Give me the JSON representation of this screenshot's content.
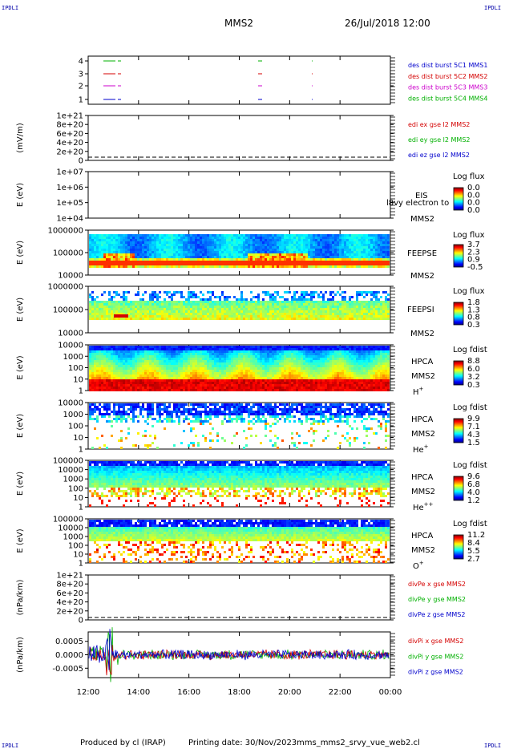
{
  "corner_label": "IPDLI",
  "header": {
    "spacecraft": "MMS2",
    "datetime": "26/Jul/2018 12:00"
  },
  "footer": {
    "produced": "Produced by cl (IRAP)",
    "printing": "Printing date: 30/Nov/2023",
    "file": "mms_mms2_srvy_vue_web2.cl"
  },
  "colors": {
    "red": "#d40000",
    "green": "#00b000",
    "blue": "#0000cc",
    "magenta": "#cc00cc"
  },
  "chart_data": [
    {
      "id": "burst",
      "type": "timeline",
      "yticks": [
        "4",
        "3",
        "2",
        "1"
      ],
      "legend": [
        {
          "label": "des dist burst 5C1 MMS1",
          "color": "#0000cc"
        },
        {
          "label": "des dist burst 5C2 MMS2",
          "color": "#d40000"
        },
        {
          "label": "des dist burst 5C3 MMS3",
          "color": "#cc00cc"
        },
        {
          "label": "des dist burst 5C4 MMS4",
          "color": "#00b000"
        }
      ]
    },
    {
      "id": "edi",
      "type": "line",
      "ylabel": "(mV/m)",
      "yticks": [
        "1e+21",
        "8e+20",
        "6e+20",
        "4e+20",
        "2e+20",
        "0"
      ],
      "legend": [
        {
          "label": "edi ex gse l2 MMS2",
          "color": "#d40000"
        },
        {
          "label": "edi ey gse l2 MMS2",
          "color": "#00b000"
        },
        {
          "label": "edi ez gse l2 MMS2",
          "color": "#0000cc"
        }
      ]
    },
    {
      "id": "eis",
      "type": "heatmap",
      "ylabel": "E (eV)",
      "yticks": [
        "1e+07",
        "1e+06",
        "1e+05",
        "1e+04"
      ],
      "instrument": "EIS",
      "sc": "MMS2",
      "overlay": "l8vy electron to",
      "cbar": {
        "title": "Log flux",
        "ticks": [
          "0.0",
          "0.0",
          "0.0",
          "0.0"
        ]
      }
    },
    {
      "id": "feepse",
      "type": "heatmap",
      "ylabel": "E (eV)",
      "yticks": [
        "1000000",
        "100000",
        "10000"
      ],
      "instrument": "FEEPSE",
      "sc": "MMS2",
      "cbar": {
        "title": "Log flux",
        "ticks": [
          "3.7",
          "2.3",
          "0.9",
          "-0.5"
        ]
      }
    },
    {
      "id": "feepsi",
      "type": "heatmap",
      "ylabel": "E (eV)",
      "yticks": [
        "1000000",
        "100000",
        "10000"
      ],
      "instrument": "FEEPSI",
      "sc": "MMS2",
      "cbar": {
        "title": "Log flux",
        "ticks": [
          "1.8",
          "1.3",
          "0.8",
          "0.3"
        ]
      }
    },
    {
      "id": "hpca_h",
      "type": "heatmap",
      "ylabel": "E (eV)",
      "yticks": [
        "10000",
        "1000",
        "100",
        "10",
        "1"
      ],
      "instrument": "HPCA",
      "sc": "MMS2",
      "species": "H",
      "charge": "+",
      "cbar": {
        "title": "Log fdist",
        "ticks": [
          "8.8",
          "6.0",
          "3.2",
          "0.3"
        ]
      }
    },
    {
      "id": "hpca_he",
      "type": "heatmap",
      "ylabel": "E (eV)",
      "yticks": [
        "10000",
        "1000",
        "100",
        "10",
        "1"
      ],
      "instrument": "HPCA",
      "sc": "MMS2",
      "species": "He",
      "charge": "+",
      "cbar": {
        "title": "Log fdist",
        "ticks": [
          "9.9",
          "7.1",
          "4.3",
          "1.5"
        ]
      }
    },
    {
      "id": "hpca_hepp",
      "type": "heatmap",
      "ylabel": "E (eV)",
      "yticks": [
        "100000",
        "10000",
        "1000",
        "100",
        "10",
        "1"
      ],
      "instrument": "HPCA",
      "sc": "MMS2",
      "species": "He",
      "charge": "++",
      "cbar": {
        "title": "Log fdist",
        "ticks": [
          "9.6",
          "6.8",
          "4.0",
          "1.2"
        ]
      }
    },
    {
      "id": "hpca_o",
      "type": "heatmap",
      "ylabel": "E (eV)",
      "yticks": [
        "100000",
        "10000",
        "1000",
        "100",
        "10",
        "1"
      ],
      "instrument": "HPCA",
      "sc": "MMS2",
      "species": "O",
      "charge": "+",
      "cbar": {
        "title": "Log fdist",
        "ticks": [
          "11.2",
          "8.4",
          "5.5",
          "2.7"
        ]
      }
    },
    {
      "id": "divpe",
      "type": "line",
      "ylabel": "(nPa/km)",
      "yticks": [
        "1e+21",
        "8e+20",
        "6e+20",
        "4e+20",
        "2e+20",
        "0"
      ],
      "legend": [
        {
          "label": "divPe x gse MMS2",
          "color": "#d40000"
        },
        {
          "label": "divPe y gse MMS2",
          "color": "#00b000"
        },
        {
          "label": "divPe z gse MMS2",
          "color": "#0000cc"
        }
      ]
    },
    {
      "id": "divpi",
      "type": "line",
      "ylabel": "(nPa/km)",
      "yticks": [
        "0.0005",
        "0.0000",
        "-0.0005"
      ],
      "ylim": [
        -0.00085,
        0.00085
      ],
      "legend": [
        {
          "label": "divPi x gse MMS2",
          "color": "#d40000"
        },
        {
          "label": "divPi y gse MMS2",
          "color": "#00b000"
        },
        {
          "label": "divPi z gse MMS2",
          "color": "#0000cc"
        }
      ]
    }
  ],
  "xaxis": {
    "ticks": [
      "12:00",
      "14:00",
      "16:00",
      "18:00",
      "20:00",
      "22:00",
      "00:00"
    ]
  }
}
